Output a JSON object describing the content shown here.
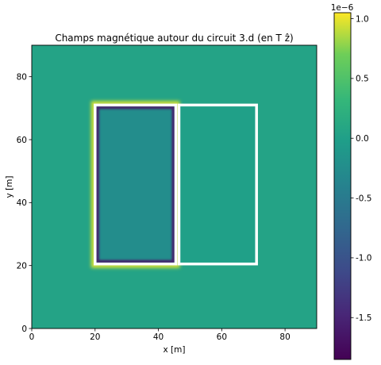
{
  "chart_data": {
    "type": "heatmap",
    "title": "Champs magnétique autour du circuit 3.d (en T ẑ)",
    "xlabel": "x [m]",
    "ylabel": "y [m]",
    "xlim": [
      0,
      90
    ],
    "ylim": [
      0,
      90
    ],
    "x_ticks": [
      0,
      20,
      40,
      60,
      80
    ],
    "y_ticks": [
      0,
      20,
      40,
      60,
      80
    ],
    "colormap": "viridis",
    "colorbar": {
      "range": [
        -1.85,
        1.05
      ],
      "ticks": [
        1.0,
        0.5,
        0.0,
        -0.5,
        -1.0,
        -1.5
      ],
      "tick_labels": [
        "1.0",
        "0.5",
        "0.0",
        "-0.5",
        "-1.0",
        "-1.5"
      ],
      "offset_text": "1e−6"
    },
    "circuit": {
      "color": "#ffffff",
      "rectangles": [
        {
          "x": [
            20,
            45.5
          ],
          "y": [
            20.5,
            71
          ]
        },
        {
          "x": [
            46.5,
            71
          ],
          "y": [
            20.5,
            71
          ]
        }
      ]
    },
    "field_levels": {
      "background": 0.05,
      "left_interior": -0.25,
      "right_interior": 0.0,
      "left_inner_edge": -1.6,
      "outer_glow": 0.95
    }
  }
}
